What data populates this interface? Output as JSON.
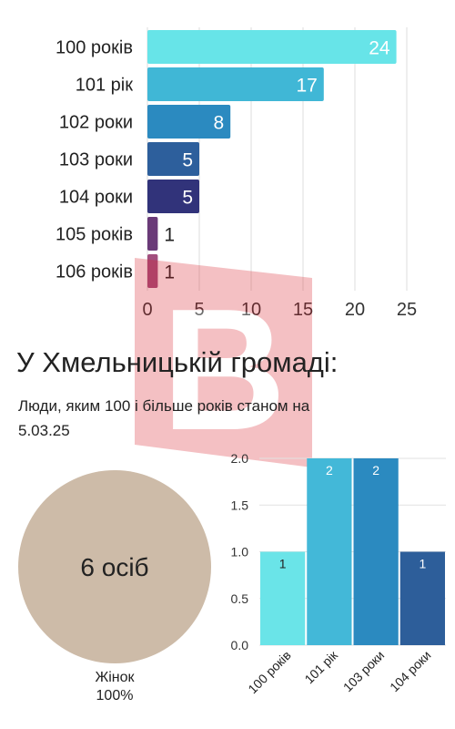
{
  "heading": {
    "title": "У Хмельницькій громаді:",
    "subtitle": "Люди, яким 100 і більше років станом на 5.03.25"
  },
  "women_summary": {
    "center_label": "6 осіб",
    "legend_label": "Жінок",
    "legend_value": "100%",
    "share": 1.0,
    "color": "#cdbba8"
  },
  "watermark": {
    "glyph": "В",
    "color": "#d81f2a"
  },
  "chart_data": [
    {
      "type": "bar",
      "orientation": "horizontal",
      "categories": [
        "100 років",
        "101 рік",
        "102 роки",
        "103 роки",
        "104 роки",
        "105 років",
        "106 років"
      ],
      "values": [
        24,
        17,
        8,
        5,
        5,
        1,
        1
      ],
      "value_labels": [
        "24",
        "17",
        "8",
        "5",
        "5",
        "1",
        "1"
      ],
      "colors": [
        "#67e4e8",
        "#40b7d6",
        "#2b8ac0",
        "#2d5f9c",
        "#31337a",
        "#6a3a78",
        "#a24f7e"
      ],
      "xlim": [
        0,
        25
      ],
      "x_ticks": [
        "0",
        "5",
        "10",
        "15",
        "20",
        "25"
      ],
      "grid": true
    },
    {
      "type": "bar",
      "categories": [
        "100 років",
        "101 рік",
        "103 роки",
        "104 роки"
      ],
      "values": [
        1,
        2,
        2,
        1
      ],
      "value_labels": [
        "1",
        "2",
        "2",
        "1"
      ],
      "colors": [
        "#6ae4e8",
        "#43b8d8",
        "#2b8ac0",
        "#2d5e9a"
      ],
      "ylim": [
        0,
        2
      ],
      "y_ticks": [
        "0.0",
        "0.5",
        "1.0",
        "1.5",
        "2.0"
      ],
      "grid": true
    }
  ]
}
